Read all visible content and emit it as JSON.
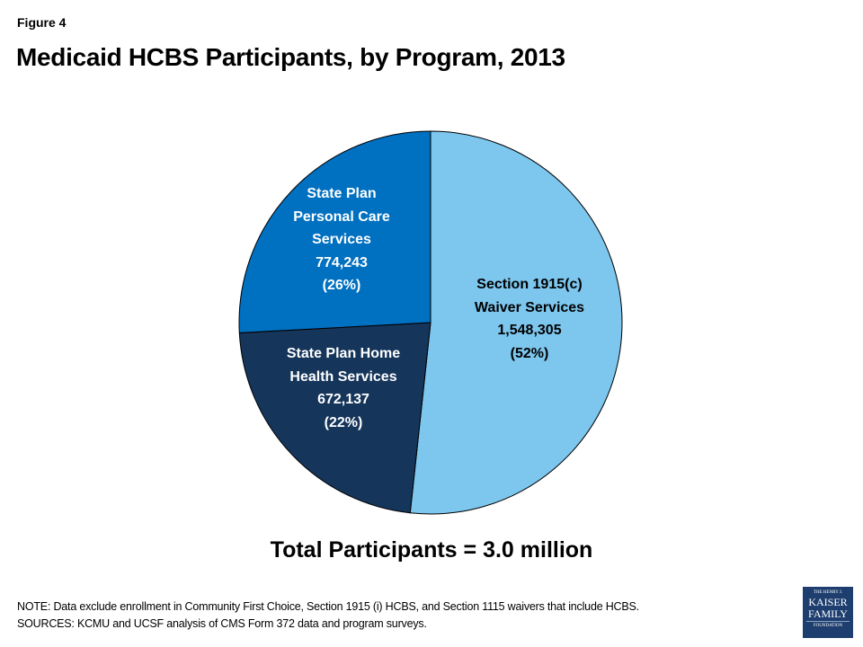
{
  "figure_label": "Figure 4",
  "title": "Medicaid HCBS Participants, by Program, 2013",
  "chart_data": {
    "type": "pie",
    "title": "Medicaid HCBS Participants, by Program, 2013",
    "start_angle": "12 o'clock, clockwise",
    "slices": [
      {
        "name": "Section 1915(c) Waiver Services",
        "label_lines": [
          "Section 1915(c)",
          "Waiver Services"
        ],
        "value": 1548305,
        "value_label": "1,548,305",
        "percent": 52,
        "percent_label": "(52%)",
        "color": "#7DC6EE"
      },
      {
        "name": "State Plan Home Health Services",
        "label_lines": [
          "State Plan Home",
          "Health Services"
        ],
        "value": 672137,
        "value_label": "672,137",
        "percent": 22,
        "percent_label": "(22%)",
        "color": "#15355B"
      },
      {
        "name": "State Plan Personal Care Services",
        "label_lines": [
          "State Plan",
          "Personal Care",
          "Services"
        ],
        "value": 774243,
        "value_label": "774,243",
        "percent": 26,
        "percent_label": "(26%)",
        "color": "#0070C0"
      }
    ],
    "annotation": "Total Participants = 3.0 million"
  },
  "notes": {
    "note": "NOTE: Data exclude enrollment in Community First Choice, Section 1915 (i) HCBS, and Section 1115 waivers that include HCBS.",
    "sources": "SOURCES: KCMU and UCSF analysis of CMS Form  372 data and program surveys."
  },
  "logo": {
    "line1": "THE HENRY J.",
    "line2": "KAISER",
    "line3": "FAMILY",
    "line4": "FOUNDATION"
  }
}
